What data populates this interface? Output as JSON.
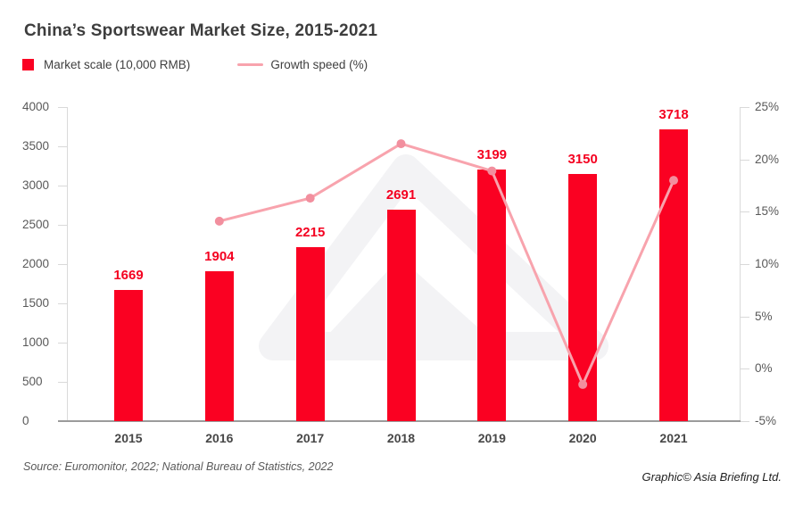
{
  "title": "China’s Sportswear Market Size, 2015-2021",
  "legend": {
    "market": {
      "label": "Market scale (10,000 RMB)",
      "swatch_color": "#fa0122"
    },
    "growth": {
      "label": "Growth speed (%)",
      "swatch_color": "#f8a3ad"
    }
  },
  "footer": {
    "source": "Source: Euromonitor, 2022; National Bureau of Statistics, 2022",
    "credit": "Graphic© Asia Briefing Ltd."
  },
  "colors": {
    "bar_red": "#fa0122",
    "data_label_red": "#f40020",
    "line_pink": "#f8a3ad",
    "marker_pink": "#f28f9e",
    "axis_light": "#d9d9d9",
    "axis_baseline": "#9b9b9b",
    "axis_text": "#595959",
    "watermark_gray": "#f3f3f5"
  },
  "chart_data": {
    "type": "bar",
    "title": "China’s Sportswear Market Size, 2015-2021",
    "categories": [
      "2015",
      "2016",
      "2017",
      "2018",
      "2019",
      "2020",
      "2021"
    ],
    "series": [
      {
        "name": "Market scale (10,000 RMB)",
        "type": "bar",
        "axis": "left",
        "values": [
          1669,
          1904,
          2215,
          2691,
          3199,
          3150,
          3718
        ],
        "data_labels": [
          "1669",
          "1904",
          "2215",
          "2691",
          "3199",
          "3150",
          "3718"
        ],
        "color": "#fa0122"
      },
      {
        "name": "Growth speed (%)",
        "type": "line",
        "axis": "right",
        "x": [
          "2016",
          "2017",
          "2018",
          "2019",
          "2020",
          "2021"
        ],
        "values": [
          14.1,
          16.3,
          21.5,
          18.9,
          -1.5,
          18.0
        ],
        "color": "#f8a3ad"
      }
    ],
    "left_axis": {
      "min": 0,
      "max": 4000,
      "step": 500,
      "ticks": [
        "0",
        "500",
        "1000",
        "1500",
        "2000",
        "2500",
        "3000",
        "3500",
        "4000"
      ]
    },
    "right_axis": {
      "min": -5,
      "max": 25,
      "step": 5,
      "ticks": [
        "-5%",
        "0%",
        "5%",
        "10%",
        "15%",
        "20%",
        "25%"
      ]
    },
    "grid": false,
    "legend_position": "top-left"
  }
}
